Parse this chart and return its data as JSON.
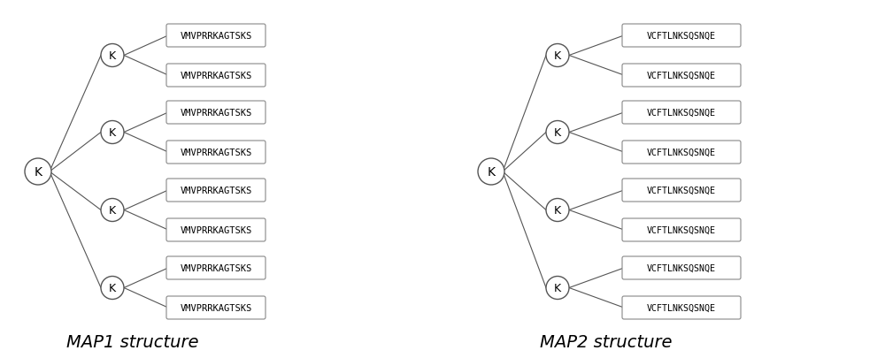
{
  "map1_label": "MAP1 structure",
  "map2_label": "MAP2 structure",
  "map1_peptide": "VMVPRRKAGTSKS",
  "map2_peptide": "VCFTLNKSQSNQE",
  "background_color": "#ffffff",
  "line_color": "#555555",
  "circle_color": "#ffffff",
  "circle_edge_color": "#555555",
  "box_edge_color": "#888888",
  "text_color": "#000000",
  "title_fontsize": 14,
  "label_fontsize": 9,
  "k_fontsize": 10
}
